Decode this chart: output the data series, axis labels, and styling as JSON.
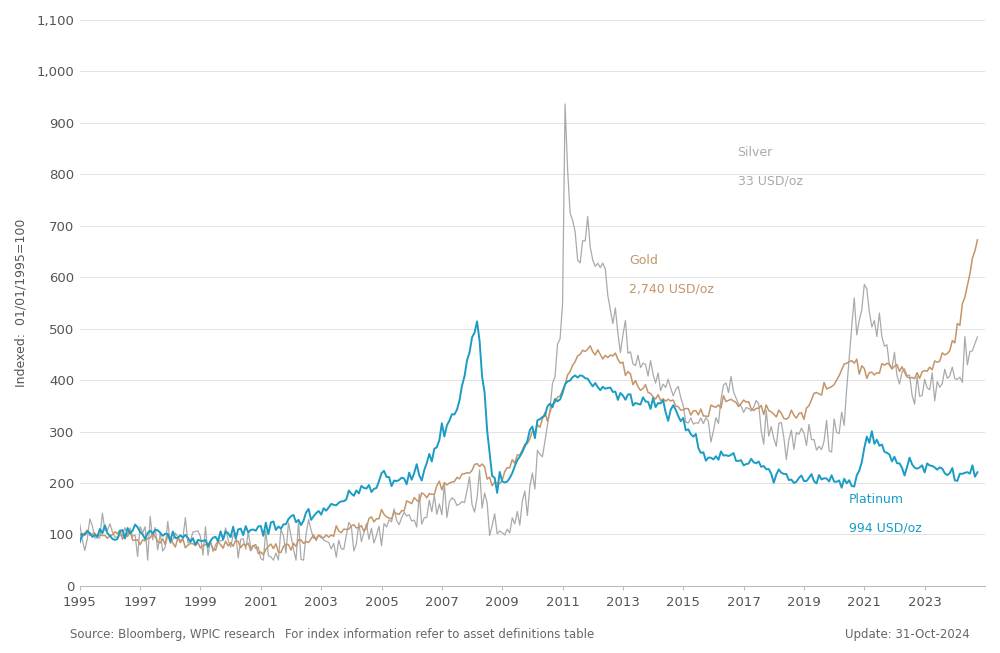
{
  "ylabel": "Indexed:  01/01/1995=100",
  "ylim": [
    0,
    1100
  ],
  "yticks": [
    0,
    100,
    200,
    300,
    400,
    500,
    600,
    700,
    800,
    900,
    1000,
    1100
  ],
  "ytick_labels": [
    "0",
    "100",
    "200",
    "300",
    "400",
    "500",
    "600",
    "700",
    "800",
    "900",
    "1,000",
    "1,100"
  ],
  "xlim_start": 1995.0,
  "xlim_end": 2025.0,
  "xtick_years": [
    1995,
    1997,
    1999,
    2001,
    2003,
    2005,
    2007,
    2009,
    2011,
    2013,
    2015,
    2017,
    2019,
    2021,
    2023
  ],
  "gold_color": "#c4956a",
  "silver_color": "#aaaaaa",
  "platinum_color": "#1a9cc4",
  "source_text": "Source: Bloomberg, WPIC research",
  "info_text": "For index information refer to asset definitions table",
  "update_text": "Update: 31-Oct-2024",
  "bg_color": "#ffffff",
  "grid_color": "#dddddd",
  "footnote_fontsize": 8.5,
  "label_fontsize": 9
}
